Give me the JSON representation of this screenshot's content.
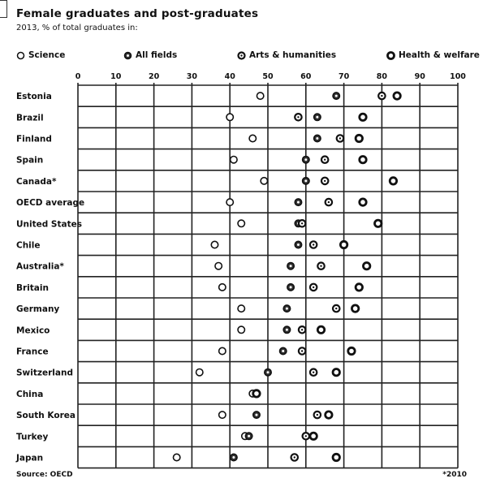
{
  "header": {
    "title": "Female graduates and post-graduates",
    "subtitle": "2013, % of total graduates in:"
  },
  "footer": {
    "source": "Source: OECD",
    "note": "*2010"
  },
  "colors": {
    "primary": "#111111",
    "marker_fill_open": "#ffffff",
    "marker_fill_dark": "#333333",
    "grid": "#222222"
  },
  "chart_data": {
    "type": "scatter",
    "title": "Female graduates and post-graduates",
    "subtitle": "2013, % of total graduates in:",
    "x_ticks": [
      0,
      10,
      20,
      30,
      40,
      50,
      60,
      70,
      80,
      90,
      100
    ],
    "xlim": [
      0,
      100
    ],
    "legend_position": "top",
    "categories": [
      "Estonia",
      "Brazil",
      "Finland",
      "Spain",
      "Canada*",
      "OECD average",
      "United States",
      "Chile",
      "Australia*",
      "Britain",
      "Germany",
      "Mexico",
      "France",
      "Switzerland",
      "China",
      "South Korea",
      "Turkey",
      "Japan"
    ],
    "series": [
      {
        "name": "Science",
        "marker": "open",
        "values": [
          48,
          40,
          46,
          41,
          49,
          40,
          43,
          36,
          37,
          38,
          43,
          43,
          38,
          32,
          46,
          38,
          44,
          26
        ]
      },
      {
        "name": "All fields",
        "marker": "dark",
        "values": [
          68,
          63,
          63,
          60,
          60,
          58,
          58,
          58,
          56,
          56,
          55,
          55,
          54,
          50,
          47,
          47,
          45,
          41
        ]
      },
      {
        "name": "Arts & humanities",
        "marker": "ring",
        "values": [
          80,
          58,
          69,
          65,
          65,
          66,
          59,
          62,
          64,
          62,
          68,
          59,
          59,
          62,
          47,
          63,
          60,
          57
        ]
      },
      {
        "name": "Health & welfare",
        "marker": "bold",
        "values": [
          84,
          75,
          74,
          75,
          83,
          75,
          79,
          70,
          76,
          74,
          73,
          64,
          72,
          68,
          47,
          66,
          62,
          68
        ]
      }
    ]
  }
}
